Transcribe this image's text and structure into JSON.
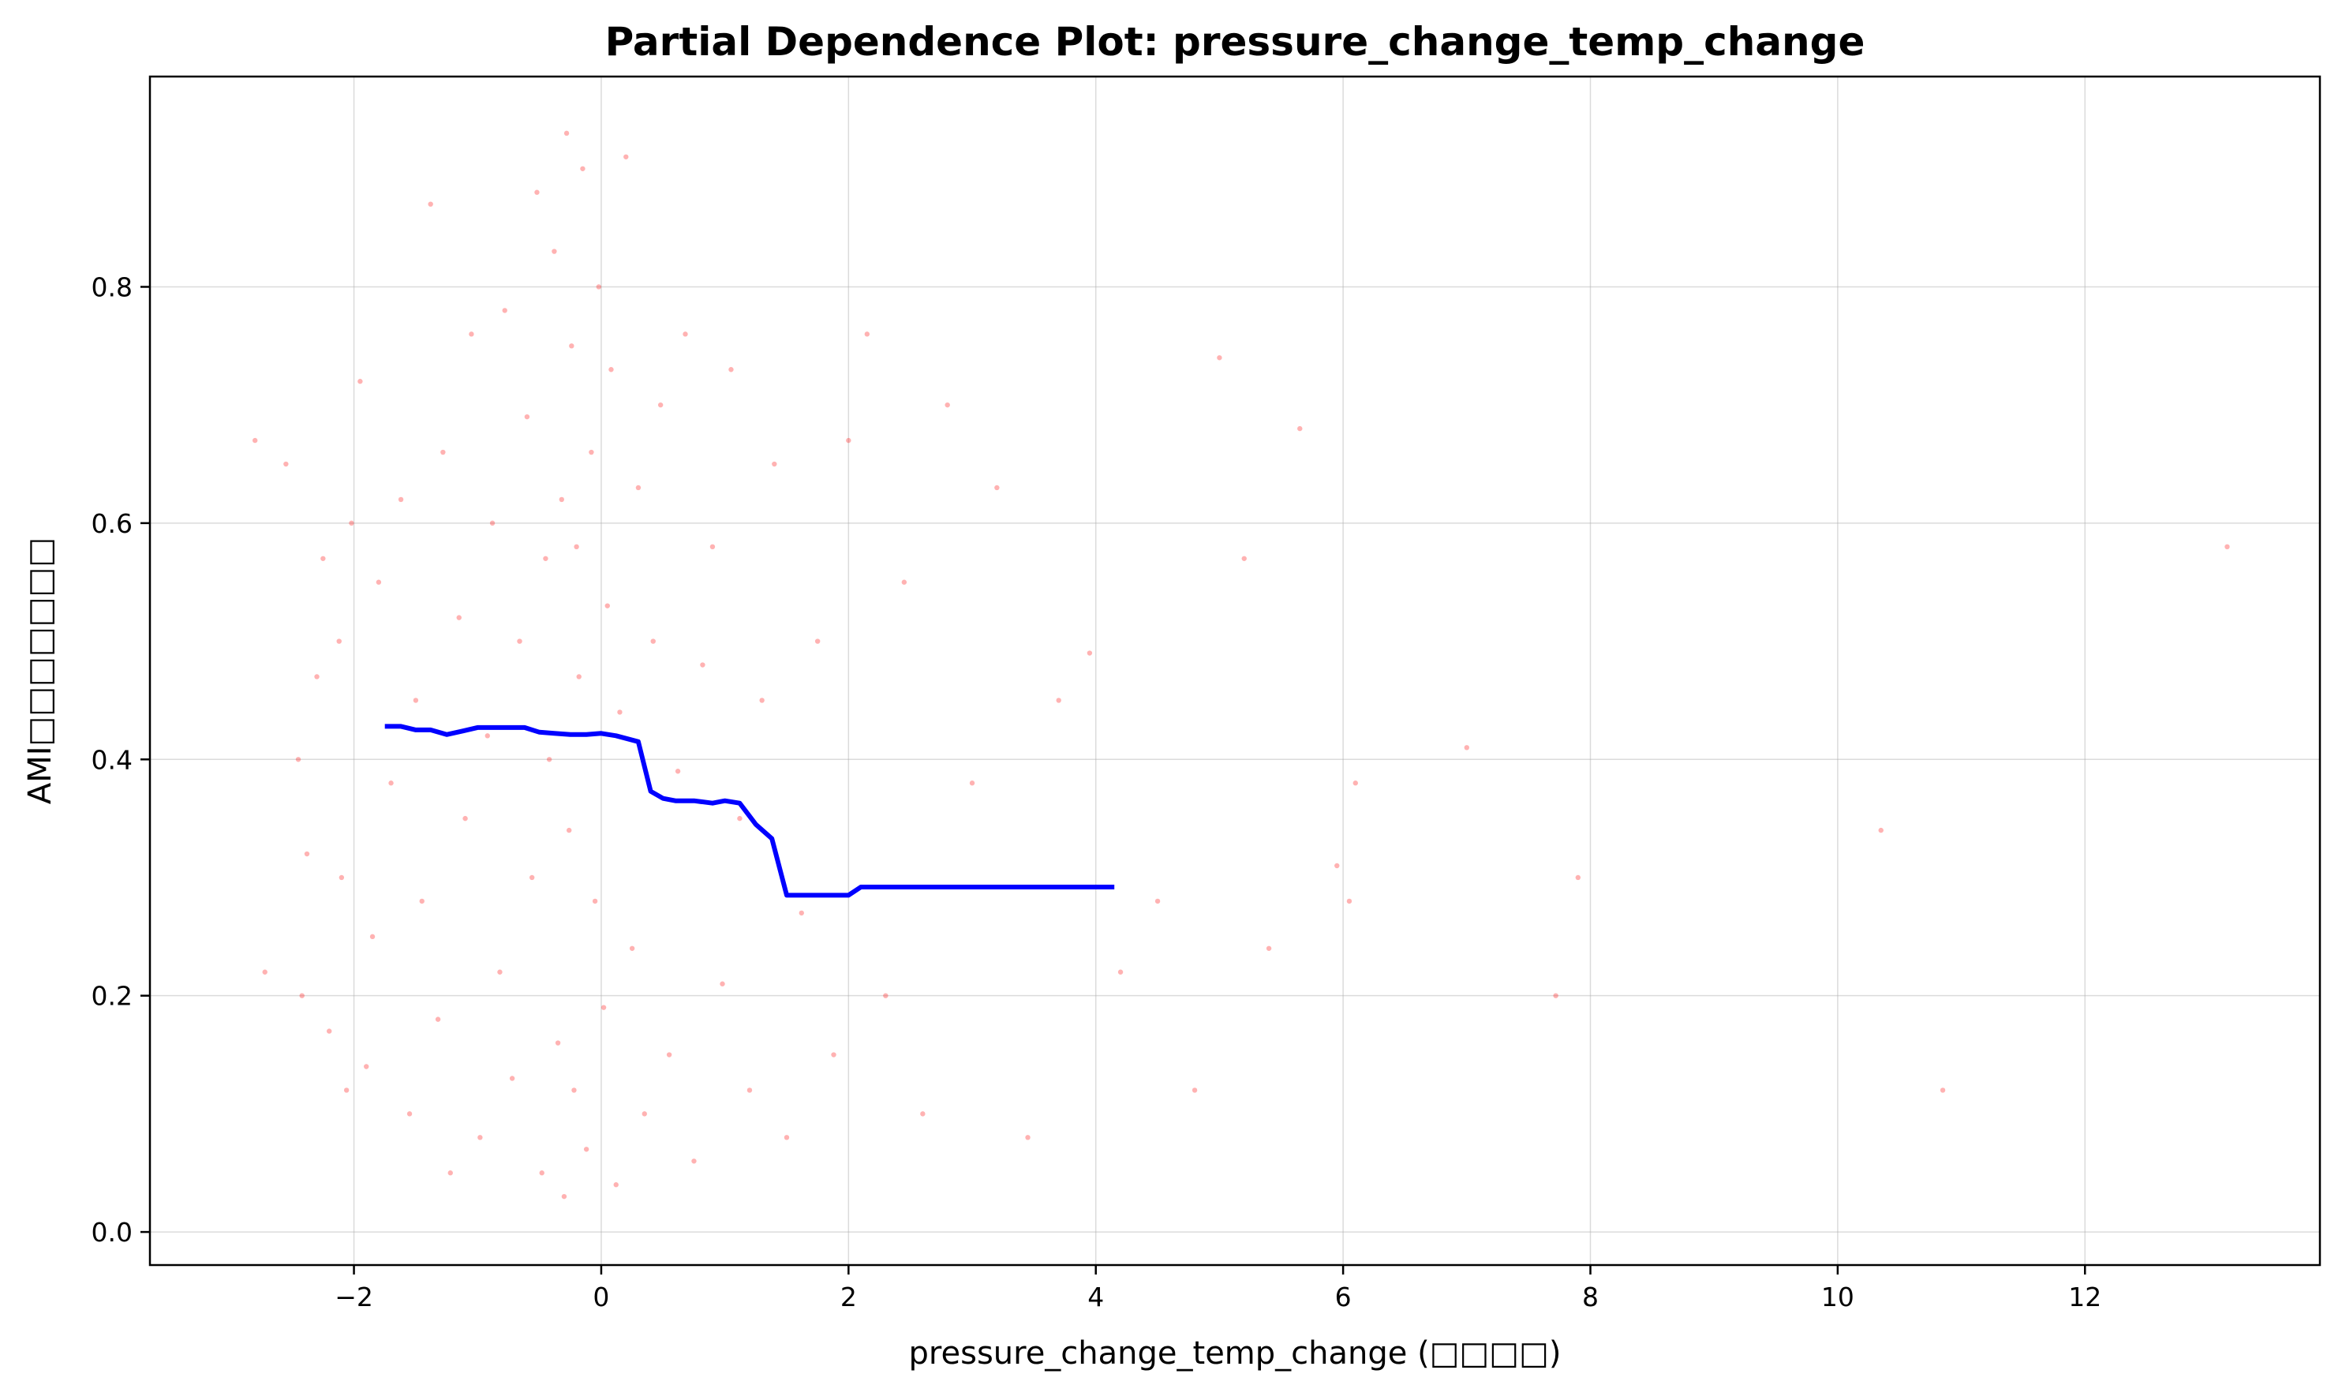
{
  "chart_data": {
    "type": "line",
    "title": "Partial Dependence Plot: pressure_change_temp_change",
    "xlabel": "pressure_change_temp_change (□□□□)",
    "ylabel": "AMI□□□□□□□",
    "xlim": [
      -3.65,
      13.9
    ],
    "ylim": [
      -0.028,
      0.978
    ],
    "xticks": [
      -2,
      0,
      2,
      4,
      6,
      8,
      10,
      12
    ],
    "xtick_labels": [
      "−2",
      "0",
      "2",
      "4",
      "6",
      "8",
      "10",
      "12"
    ],
    "yticks": [
      0.0,
      0.2,
      0.4,
      0.6,
      0.8
    ],
    "ytick_labels": [
      "0.0",
      "0.2",
      "0.4",
      "0.6",
      "0.8"
    ],
    "grid": true,
    "colors": {
      "line": "#0000ff",
      "points": "#ff0000",
      "grid": "#b0b0b0"
    },
    "series": [
      {
        "type": "line",
        "x": [
          -1.75,
          -1.62,
          -1.5,
          -1.38,
          -1.25,
          -1.12,
          -1.0,
          -0.88,
          -0.75,
          -0.62,
          -0.5,
          -0.38,
          -0.25,
          -0.12,
          0.0,
          0.12,
          0.3,
          0.4,
          0.5,
          0.6,
          0.75,
          0.9,
          1.0,
          1.12,
          1.25,
          1.38,
          1.5,
          1.7,
          1.9,
          2.0,
          2.1,
          2.5,
          3.0,
          3.5,
          4.0,
          4.15
        ],
        "y": [
          0.428,
          0.428,
          0.425,
          0.425,
          0.421,
          0.424,
          0.427,
          0.427,
          0.427,
          0.427,
          0.423,
          0.422,
          0.421,
          0.421,
          0.422,
          0.42,
          0.415,
          0.373,
          0.367,
          0.365,
          0.365,
          0.363,
          0.365,
          0.363,
          0.345,
          0.333,
          0.285,
          0.285,
          0.285,
          0.285,
          0.292,
          0.292,
          0.292,
          0.292,
          0.292,
          0.292
        ]
      },
      {
        "type": "scatter",
        "x": [
          -2.8,
          -2.72,
          -2.55,
          -2.45,
          -2.42,
          -2.38,
          -2.3,
          -2.25,
          -2.2,
          -2.12,
          -2.1,
          -2.06,
          -2.02,
          -1.95,
          -1.9,
          -1.85,
          -1.8,
          -1.7,
          -1.62,
          -1.55,
          -1.5,
          -1.45,
          -1.38,
          -1.32,
          -1.28,
          -1.22,
          -1.15,
          -1.1,
          -1.05,
          -0.98,
          -0.92,
          -0.88,
          -0.82,
          -0.78,
          -0.72,
          -0.66,
          -0.6,
          -0.56,
          -0.52,
          -0.48,
          -0.45,
          -0.42,
          -0.38,
          -0.35,
          -0.32,
          -0.3,
          -0.28,
          -0.26,
          -0.24,
          -0.22,
          -0.2,
          -0.18,
          -0.15,
          -0.12,
          -0.08,
          -0.05,
          -0.02,
          0.02,
          0.05,
          0.08,
          0.12,
          0.15,
          0.2,
          0.25,
          0.3,
          0.35,
          0.42,
          0.48,
          0.55,
          0.62,
          0.68,
          0.75,
          0.82,
          0.9,
          0.98,
          1.05,
          1.12,
          1.2,
          1.3,
          1.4,
          1.5,
          1.62,
          1.75,
          1.88,
          2.0,
          2.15,
          2.3,
          2.45,
          2.6,
          2.8,
          3.0,
          3.2,
          3.45,
          3.7,
          3.95,
          4.2,
          4.5,
          4.8,
          5.0,
          5.2,
          5.4,
          5.65,
          5.95,
          6.05,
          6.1,
          7.0,
          7.72,
          7.9,
          10.35,
          10.85,
          13.15
        ],
        "y": [
          0.67,
          0.22,
          0.65,
          0.4,
          0.2,
          0.32,
          0.47,
          0.57,
          0.17,
          0.5,
          0.3,
          0.12,
          0.6,
          0.72,
          0.14,
          0.25,
          0.55,
          0.38,
          0.62,
          0.1,
          0.45,
          0.28,
          0.87,
          0.18,
          0.66,
          0.05,
          0.52,
          0.35,
          0.76,
          0.08,
          0.42,
          0.6,
          0.22,
          0.78,
          0.13,
          0.5,
          0.69,
          0.3,
          0.88,
          0.05,
          0.57,
          0.4,
          0.83,
          0.16,
          0.62,
          0.03,
          0.93,
          0.34,
          0.75,
          0.12,
          0.58,
          0.47,
          0.9,
          0.07,
          0.66,
          0.28,
          0.8,
          0.19,
          0.53,
          0.73,
          0.04,
          0.44,
          0.91,
          0.24,
          0.63,
          0.1,
          0.5,
          0.7,
          0.15,
          0.39,
          0.76,
          0.06,
          0.48,
          0.58,
          0.21,
          0.73,
          0.35,
          0.12,
          0.45,
          0.65,
          0.08,
          0.27,
          0.5,
          0.15,
          0.67,
          0.76,
          0.2,
          0.55,
          0.1,
          0.7,
          0.38,
          0.63,
          0.08,
          0.45,
          0.49,
          0.22,
          0.28,
          0.12,
          0.74,
          0.57,
          0.24,
          0.68,
          0.31,
          0.28,
          0.38,
          0.41,
          0.2,
          0.3,
          0.34,
          0.12,
          0.58
        ]
      }
    ]
  }
}
